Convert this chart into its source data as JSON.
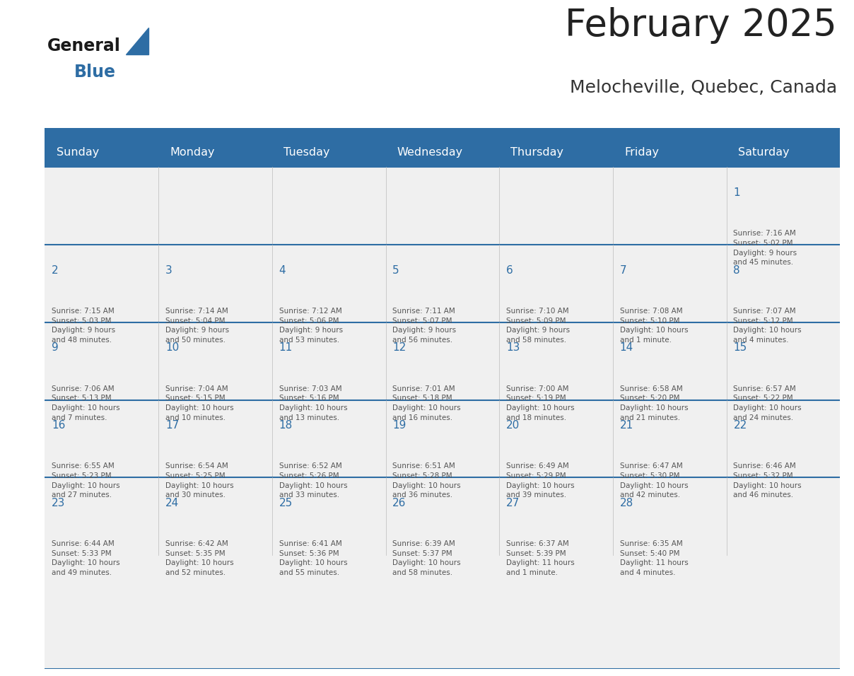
{
  "title": "February 2025",
  "subtitle": "Melocheville, Quebec, Canada",
  "days_of_week": [
    "Sunday",
    "Monday",
    "Tuesday",
    "Wednesday",
    "Thursday",
    "Friday",
    "Saturday"
  ],
  "header_bg": "#2E6DA4",
  "header_text_color": "#FFFFFF",
  "cell_bg_light": "#F0F0F0",
  "divider_color": "#2E6DA4",
  "title_color": "#222222",
  "subtitle_color": "#333333",
  "day_number_color": "#2E6DA4",
  "cell_text_color": "#555555",
  "cell_border_color": "#BBBBBB",
  "calendar_data": [
    [
      null,
      null,
      null,
      null,
      null,
      null,
      {
        "day": 1,
        "sunrise": "7:16 AM",
        "sunset": "5:02 PM",
        "daylight": "9 hours\nand 45 minutes."
      }
    ],
    [
      {
        "day": 2,
        "sunrise": "7:15 AM",
        "sunset": "5:03 PM",
        "daylight": "9 hours\nand 48 minutes."
      },
      {
        "day": 3,
        "sunrise": "7:14 AM",
        "sunset": "5:04 PM",
        "daylight": "9 hours\nand 50 minutes."
      },
      {
        "day": 4,
        "sunrise": "7:12 AM",
        "sunset": "5:06 PM",
        "daylight": "9 hours\nand 53 minutes."
      },
      {
        "day": 5,
        "sunrise": "7:11 AM",
        "sunset": "5:07 PM",
        "daylight": "9 hours\nand 56 minutes."
      },
      {
        "day": 6,
        "sunrise": "7:10 AM",
        "sunset": "5:09 PM",
        "daylight": "9 hours\nand 58 minutes."
      },
      {
        "day": 7,
        "sunrise": "7:08 AM",
        "sunset": "5:10 PM",
        "daylight": "10 hours\nand 1 minute."
      },
      {
        "day": 8,
        "sunrise": "7:07 AM",
        "sunset": "5:12 PM",
        "daylight": "10 hours\nand 4 minutes."
      }
    ],
    [
      {
        "day": 9,
        "sunrise": "7:06 AM",
        "sunset": "5:13 PM",
        "daylight": "10 hours\nand 7 minutes."
      },
      {
        "day": 10,
        "sunrise": "7:04 AM",
        "sunset": "5:15 PM",
        "daylight": "10 hours\nand 10 minutes."
      },
      {
        "day": 11,
        "sunrise": "7:03 AM",
        "sunset": "5:16 PM",
        "daylight": "10 hours\nand 13 minutes."
      },
      {
        "day": 12,
        "sunrise": "7:01 AM",
        "sunset": "5:18 PM",
        "daylight": "10 hours\nand 16 minutes."
      },
      {
        "day": 13,
        "sunrise": "7:00 AM",
        "sunset": "5:19 PM",
        "daylight": "10 hours\nand 18 minutes."
      },
      {
        "day": 14,
        "sunrise": "6:58 AM",
        "sunset": "5:20 PM",
        "daylight": "10 hours\nand 21 minutes."
      },
      {
        "day": 15,
        "sunrise": "6:57 AM",
        "sunset": "5:22 PM",
        "daylight": "10 hours\nand 24 minutes."
      }
    ],
    [
      {
        "day": 16,
        "sunrise": "6:55 AM",
        "sunset": "5:23 PM",
        "daylight": "10 hours\nand 27 minutes."
      },
      {
        "day": 17,
        "sunrise": "6:54 AM",
        "sunset": "5:25 PM",
        "daylight": "10 hours\nand 30 minutes."
      },
      {
        "day": 18,
        "sunrise": "6:52 AM",
        "sunset": "5:26 PM",
        "daylight": "10 hours\nand 33 minutes."
      },
      {
        "day": 19,
        "sunrise": "6:51 AM",
        "sunset": "5:28 PM",
        "daylight": "10 hours\nand 36 minutes."
      },
      {
        "day": 20,
        "sunrise": "6:49 AM",
        "sunset": "5:29 PM",
        "daylight": "10 hours\nand 39 minutes."
      },
      {
        "day": 21,
        "sunrise": "6:47 AM",
        "sunset": "5:30 PM",
        "daylight": "10 hours\nand 42 minutes."
      },
      {
        "day": 22,
        "sunrise": "6:46 AM",
        "sunset": "5:32 PM",
        "daylight": "10 hours\nand 46 minutes."
      }
    ],
    [
      {
        "day": 23,
        "sunrise": "6:44 AM",
        "sunset": "5:33 PM",
        "daylight": "10 hours\nand 49 minutes."
      },
      {
        "day": 24,
        "sunrise": "6:42 AM",
        "sunset": "5:35 PM",
        "daylight": "10 hours\nand 52 minutes."
      },
      {
        "day": 25,
        "sunrise": "6:41 AM",
        "sunset": "5:36 PM",
        "daylight": "10 hours\nand 55 minutes."
      },
      {
        "day": 26,
        "sunrise": "6:39 AM",
        "sunset": "5:37 PM",
        "daylight": "10 hours\nand 58 minutes."
      },
      {
        "day": 27,
        "sunrise": "6:37 AM",
        "sunset": "5:39 PM",
        "daylight": "11 hours\nand 1 minute."
      },
      {
        "day": 28,
        "sunrise": "6:35 AM",
        "sunset": "5:40 PM",
        "daylight": "11 hours\nand 4 minutes."
      },
      null
    ]
  ]
}
